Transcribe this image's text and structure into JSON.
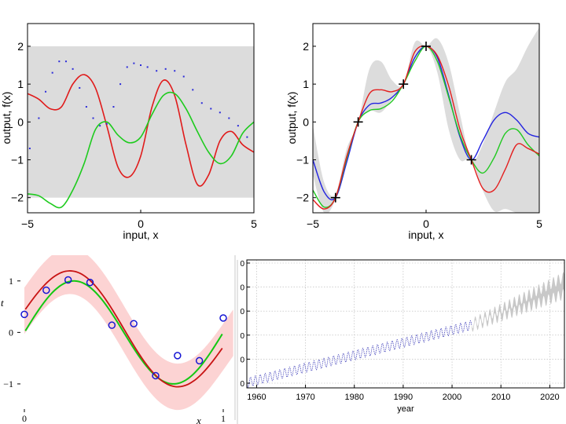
{
  "chart_data": [
    {
      "id": "prior",
      "type": "line",
      "xlabel": "input, x",
      "ylabel": "output, f(x)",
      "xlim": [
        -5,
        5
      ],
      "ylim": [
        -2.4,
        2.6
      ],
      "xticks": [
        -5,
        0,
        5
      ],
      "yticks": [
        -2,
        -1,
        0,
        1,
        2
      ],
      "band": {
        "lower": -2,
        "upper": 2,
        "color": "#dcdcdc"
      },
      "series": [
        {
          "name": "red sample",
          "color": "#e01b1b",
          "x": [
            -5,
            -4.5,
            -4,
            -3.5,
            -3,
            -2.5,
            -2,
            -1.5,
            -1,
            -0.5,
            0,
            0.5,
            1,
            1.5,
            2,
            2.5,
            3,
            3.5,
            4,
            4.5,
            5
          ],
          "y": [
            0.75,
            0.6,
            0.35,
            0.4,
            1.0,
            1.25,
            0.9,
            -0.1,
            -1.2,
            -1.45,
            -0.9,
            0.4,
            1.1,
            0.7,
            -0.6,
            -1.65,
            -1.4,
            -0.5,
            -0.25,
            -0.6,
            -0.8
          ]
        },
        {
          "name": "green sample",
          "color": "#1ecb1e",
          "x": [
            -5,
            -4.5,
            -4,
            -3.5,
            -3,
            -2.5,
            -2,
            -1.5,
            -1,
            -0.5,
            0,
            0.5,
            1,
            1.5,
            2,
            2.5,
            3,
            3.5,
            4,
            4.5,
            5
          ],
          "y": [
            -1.9,
            -1.95,
            -2.15,
            -2.25,
            -1.8,
            -1.1,
            -0.2,
            0.0,
            -0.35,
            -0.55,
            -0.4,
            0.2,
            0.7,
            0.75,
            0.35,
            -0.25,
            -0.8,
            -1.1,
            -0.9,
            -0.3,
            0.0
          ]
        },
        {
          "name": "blue sample",
          "color": "#2b2bd9",
          "style": "dotted",
          "x": [
            -4.9,
            -4.5,
            -4.2,
            -3.9,
            -3.6,
            -3.3,
            -3.0,
            -2.7,
            -2.4,
            -2.1,
            -1.8,
            -1.5,
            -1.2,
            -0.9,
            -0.6,
            -0.3,
            0.0,
            0.3,
            0.7,
            1.1,
            1.5,
            1.9,
            2.3,
            2.7,
            3.1,
            3.5,
            3.9,
            4.3,
            4.7
          ],
          "y": [
            -0.7,
            0.1,
            0.8,
            1.3,
            1.6,
            1.6,
            1.4,
            0.9,
            0.4,
            0.1,
            -0.1,
            -0.05,
            0.4,
            1.0,
            1.45,
            1.55,
            1.5,
            1.45,
            1.35,
            1.4,
            1.35,
            1.2,
            0.85,
            0.5,
            0.35,
            0.25,
            0.1,
            -0.1,
            -0.4
          ]
        }
      ]
    },
    {
      "id": "posterior",
      "type": "line",
      "xlabel": "input, x",
      "ylabel": "output, f(x)",
      "xlim": [
        -5,
        5
      ],
      "ylim": [
        -2.4,
        2.6
      ],
      "xticks": [
        -5,
        0,
        5
      ],
      "yticks": [
        -2,
        -1,
        0,
        1,
        2
      ],
      "band_x": [
        -5,
        -4.5,
        -4,
        -3.5,
        -3,
        -2.5,
        -2,
        -1.5,
        -1,
        -0.5,
        0,
        0.5,
        1,
        1.5,
        2,
        2.5,
        3,
        3.5,
        4,
        4.5,
        5
      ],
      "band_lower": [
        -1.4,
        -2.4,
        -2.05,
        -1.0,
        0.0,
        0.3,
        0.25,
        0.6,
        1.0,
        1.65,
        2.0,
        1.3,
        -0.2,
        -1.0,
        -1.0,
        -1.8,
        -2.35,
        -2.3,
        -2.4,
        -2.4,
        -2.4
      ],
      "band_upper": [
        -0.1,
        -1.6,
        -1.9,
        -0.7,
        0.0,
        1.4,
        1.6,
        1.1,
        1.0,
        2.1,
        2.0,
        2.2,
        1.55,
        0.2,
        -1.0,
        -0.6,
        0.25,
        1.05,
        1.4,
        2.0,
        2.5
      ],
      "observations": {
        "x": [
          -4,
          -3,
          -1,
          0,
          2
        ],
        "y": [
          -2,
          0,
          1,
          2,
          -1
        ]
      },
      "series": [
        {
          "name": "blue sample",
          "color": "#2323e0",
          "x": [
            -5,
            -4.5,
            -4,
            -3.5,
            -3,
            -2.5,
            -2,
            -1.5,
            -1,
            -0.5,
            0,
            0.5,
            1,
            1.5,
            2,
            2.5,
            3,
            3.5,
            4,
            4.5,
            5
          ],
          "y": [
            -1.0,
            -1.85,
            -2.0,
            -1.05,
            0.0,
            0.45,
            0.5,
            0.65,
            1.0,
            1.7,
            2.0,
            1.7,
            0.7,
            -0.4,
            -1.0,
            -0.5,
            0.05,
            0.25,
            0.05,
            -0.3,
            -0.4
          ]
        },
        {
          "name": "green sample",
          "color": "#22c922",
          "x": [
            -5,
            -4.5,
            -4,
            -3.5,
            -3,
            -2.5,
            -2,
            -1.5,
            -1,
            -0.5,
            0,
            0.5,
            1,
            1.5,
            2,
            2.5,
            3,
            3.5,
            4,
            4.5,
            5
          ],
          "y": [
            -1.8,
            -2.25,
            -2.0,
            -0.95,
            0.0,
            0.3,
            0.35,
            0.55,
            1.0,
            1.6,
            2.0,
            1.6,
            0.65,
            -0.35,
            -1.0,
            -1.35,
            -0.95,
            -0.3,
            -0.2,
            -0.6,
            -0.9
          ]
        },
        {
          "name": "red sample",
          "color": "#e41f1f",
          "x": [
            -5,
            -4.5,
            -4,
            -3.5,
            -3,
            -2.5,
            -2,
            -1.5,
            -1,
            -0.5,
            0,
            0.5,
            1,
            1.5,
            2,
            2.5,
            3,
            3.5,
            4,
            4.5,
            5
          ],
          "y": [
            -2.05,
            -2.3,
            -2.0,
            -0.9,
            0.0,
            0.75,
            0.85,
            0.8,
            1.0,
            1.85,
            2.0,
            1.75,
            0.95,
            -0.2,
            -1.0,
            -1.75,
            -1.8,
            -1.25,
            -0.6,
            -0.7,
            -0.85
          ]
        }
      ]
    },
    {
      "id": "regression",
      "type": "line",
      "xlabel": "x",
      "ylabel": "t",
      "xlim": [
        0,
        1
      ],
      "ylim": [
        -1.55,
        1.5
      ],
      "xticks": [
        0,
        1
      ],
      "yticks": [
        -1,
        0,
        1
      ],
      "band": {
        "color": "#fcd3d3",
        "halfwidth": 0.45
      },
      "green": {
        "name": "sin(2πx)",
        "color": "#12c812"
      },
      "red": {
        "name": "predictive mean",
        "color": "#c81414"
      },
      "points": {
        "x": [
          0.0,
          0.11,
          0.22,
          0.33,
          0.44,
          0.55,
          0.66,
          0.77,
          0.88,
          1.0
        ],
        "y": [
          0.35,
          0.82,
          1.02,
          0.97,
          0.14,
          0.17,
          -0.84,
          -0.45,
          -0.55,
          0.28
        ],
        "color": "#1515d4"
      }
    },
    {
      "id": "mauna_loa",
      "type": "line",
      "xlabel": "year",
      "ylabel": "",
      "xlim": [
        1958,
        2023
      ],
      "xticks": [
        1960,
        1970,
        1980,
        1990,
        2000,
        2010,
        2020
      ],
      "ytick_labels": [
        "0",
        "0",
        "0",
        "0",
        "0",
        "0"
      ],
      "observed": {
        "start": 1958,
        "end": 2004,
        "start_level": 0.04,
        "end_level": 0.49,
        "color": "#3a3ab8"
      },
      "forecast": {
        "start": 2004,
        "end": 2023,
        "start_level": 0.49,
        "end_level": 0.8,
        "color": "#c8c8c8"
      }
    }
  ]
}
